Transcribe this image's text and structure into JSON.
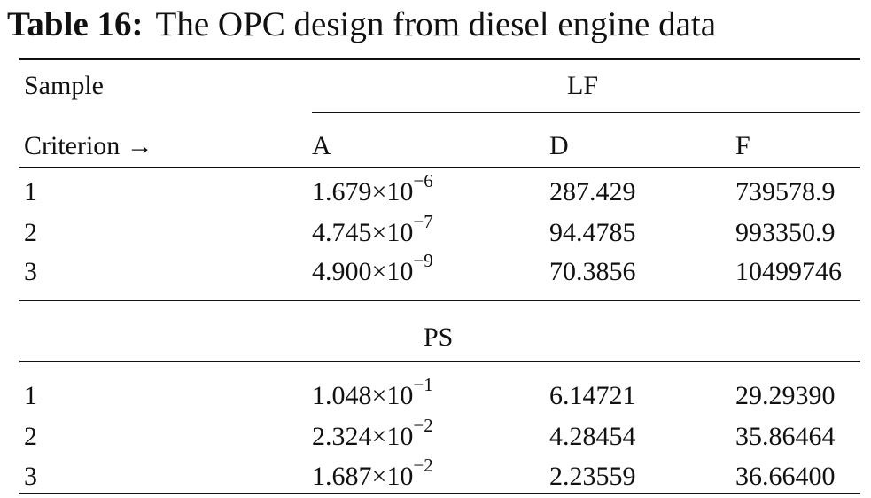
{
  "title": {
    "label": "Table 16:",
    "text": "The OPC design from diesel engine data"
  },
  "header": {
    "sample": "Sample",
    "group1": "LF",
    "criterion": "Criterion →",
    "columns": [
      "A",
      "D",
      "F"
    ]
  },
  "group2": "PS",
  "table": {
    "lf_rows": [
      {
        "sample": "1",
        "A": {
          "base": "1.679×10",
          "exponent": "−6"
        },
        "D": "287.429",
        "F": "739578.9"
      },
      {
        "sample": "2",
        "A": {
          "base": "4.745×10",
          "exponent": "−7"
        },
        "D": "94.4785",
        "F": "993350.9"
      },
      {
        "sample": "3",
        "A": {
          "base": "4.900×10",
          "exponent": "−9"
        },
        "D": "70.3856",
        "F": "10499746"
      }
    ],
    "ps_rows": [
      {
        "sample": "1",
        "A": {
          "base": "1.048×10",
          "exponent": "−1"
        },
        "D": "6.14721",
        "F": "29.29390"
      },
      {
        "sample": "2",
        "A": {
          "base": "2.324×10",
          "exponent": "−2"
        },
        "D": "4.28454",
        "F": "35.86464"
      },
      {
        "sample": "3",
        "A": {
          "base": "1.687×10",
          "exponent": "−2"
        },
        "D": "2.23559",
        "F": "36.66400"
      }
    ]
  }
}
